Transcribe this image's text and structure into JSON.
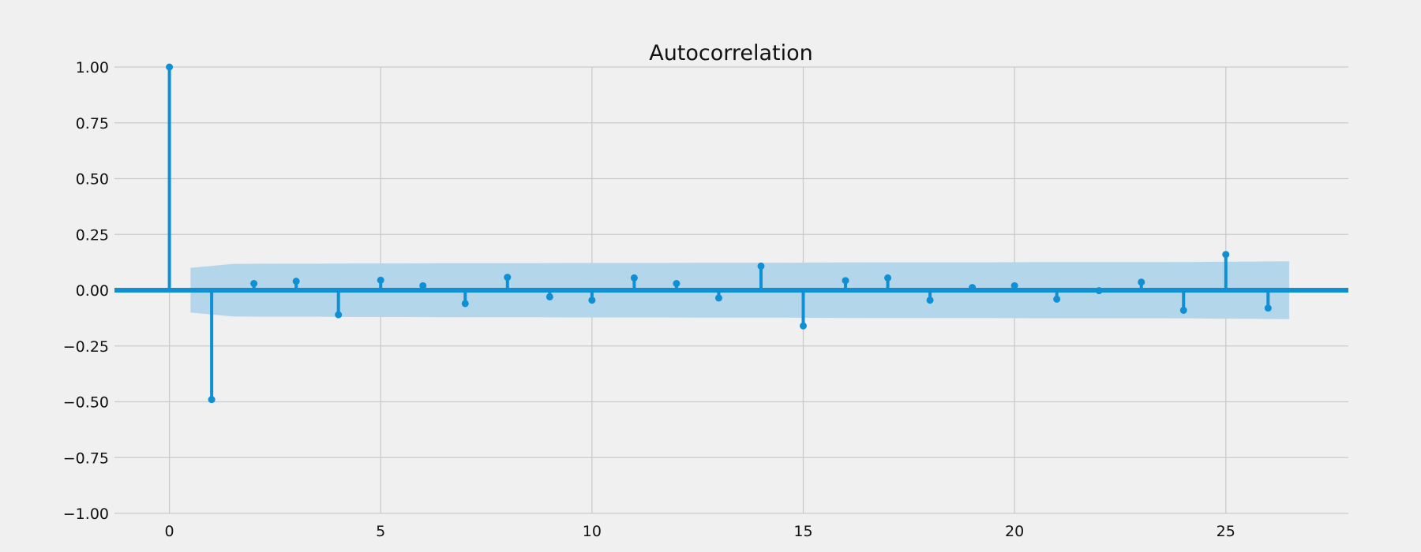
{
  "chart_data": {
    "type": "stem",
    "title": "Autocorrelation",
    "xlabel": "",
    "ylabel": "",
    "xlim": [
      -1.3,
      27.9
    ],
    "ylim": [
      -1.0,
      1.0
    ],
    "x_ticks": [
      0,
      5,
      10,
      15,
      20,
      25
    ],
    "x_tick_labels": [
      "0",
      "5",
      "10",
      "15",
      "20",
      "25"
    ],
    "y_ticks": [
      1.0,
      0.75,
      0.5,
      0.25,
      0.0,
      -0.25,
      -0.5,
      -0.75,
      -1.0
    ],
    "y_tick_labels": [
      "1.00",
      "0.75",
      "0.50",
      "0.25",
      "0.00",
      "−0.25",
      "−0.50",
      "−0.75",
      "−1.00"
    ],
    "grid": true,
    "lags": [
      0,
      1,
      2,
      3,
      4,
      5,
      6,
      7,
      8,
      9,
      10,
      11,
      12,
      13,
      14,
      15,
      16,
      17,
      18,
      19,
      20,
      21,
      22,
      23,
      24,
      25,
      26
    ],
    "values": [
      1.0,
      -0.49,
      0.03,
      0.04,
      -0.11,
      0.045,
      0.02,
      -0.06,
      0.058,
      -0.03,
      -0.045,
      0.055,
      0.03,
      -0.035,
      0.108,
      -0.16,
      0.043,
      0.055,
      -0.045,
      0.012,
      0.02,
      -0.04,
      -0.002,
      0.036,
      -0.09,
      0.16,
      -0.08
    ],
    "confidence_band": {
      "x": [
        0.5,
        1.5,
        2.5,
        3.5,
        4.5,
        5.5,
        6.5,
        7.5,
        8.5,
        9.5,
        10.5,
        11.5,
        12.5,
        13.5,
        14.5,
        15.5,
        16.5,
        17.5,
        18.5,
        19.5,
        20.5,
        21.5,
        22.5,
        23.5,
        24.5,
        25.5,
        26.5
      ],
      "upper": [
        0.1,
        0.118,
        0.119,
        0.119,
        0.12,
        0.12,
        0.121,
        0.121,
        0.121,
        0.122,
        0.122,
        0.122,
        0.123,
        0.123,
        0.123,
        0.124,
        0.125,
        0.125,
        0.125,
        0.125,
        0.126,
        0.126,
        0.126,
        0.126,
        0.127,
        0.128,
        0.13
      ],
      "lower": [
        -0.1,
        -0.118,
        -0.119,
        -0.119,
        -0.12,
        -0.12,
        -0.121,
        -0.121,
        -0.121,
        -0.122,
        -0.122,
        -0.122,
        -0.123,
        -0.123,
        -0.123,
        -0.124,
        -0.125,
        -0.125,
        -0.125,
        -0.125,
        -0.126,
        -0.126,
        -0.126,
        -0.126,
        -0.127,
        -0.128,
        -0.13
      ]
    },
    "colors": {
      "stem": "#0f8fd4",
      "band": "#b4d6ea",
      "zero_line": "#0f8fd4",
      "grid": "#cbcbcb",
      "background": "#f0f0f0"
    }
  }
}
